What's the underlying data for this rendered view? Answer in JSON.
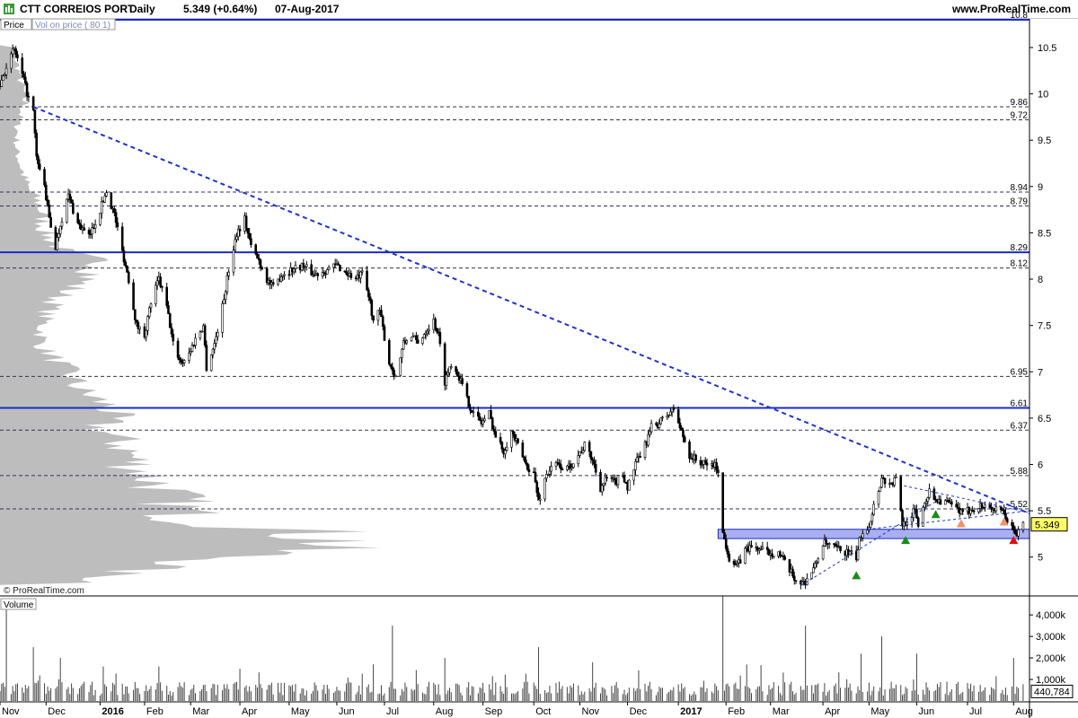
{
  "header": {
    "symbol": "CTT CORREIOS PORT",
    "period": "Daily",
    "last": "5.349 (+0.64%)",
    "date": "07-Aug-2017",
    "site": "www.ProRealTime.com"
  },
  "panels": {
    "price_tab": "Price",
    "vop_tab": "Vol on price ( 80 1)",
    "volume_tab": "Volume",
    "watermark": "© ProRealTime.com"
  },
  "colors": {
    "candle": "#000000",
    "trendline": "#1f33cc",
    "level_major": "#1a2bc2",
    "level_minor": "#333355",
    "zone_fill": "#a9aff0",
    "vop_fill": "#bdbdbd",
    "volume_bar": "#444444",
    "marker_green": "#1a8c1a",
    "marker_orange": "#f0906a",
    "marker_red": "#dd1111"
  },
  "chart_data": {
    "type": "candlestick",
    "x_axis": {
      "start": "2015-11-02",
      "end": "2017-08-11",
      "tick_labels": [
        {
          "date": "2015-11-02",
          "label": "Nov"
        },
        {
          "date": "2015-12-01",
          "label": "Dec"
        },
        {
          "date": "2016-01-04",
          "label": "2016",
          "bold": true
        },
        {
          "date": "2016-02-01",
          "label": "Feb"
        },
        {
          "date": "2016-03-01",
          "label": "Mar"
        },
        {
          "date": "2016-04-01",
          "label": "Apr"
        },
        {
          "date": "2016-05-02",
          "label": "May"
        },
        {
          "date": "2016-06-01",
          "label": "Jun"
        },
        {
          "date": "2016-07-01",
          "label": "Jul"
        },
        {
          "date": "2016-08-01",
          "label": "Aug"
        },
        {
          "date": "2016-09-01",
          "label": "Sep"
        },
        {
          "date": "2016-10-03",
          "label": "Oct"
        },
        {
          "date": "2016-11-01",
          "label": "Nov"
        },
        {
          "date": "2016-12-01",
          "label": "Dec"
        },
        {
          "date": "2017-01-02",
          "label": "2017",
          "bold": true
        },
        {
          "date": "2017-02-01",
          "label": "Feb"
        },
        {
          "date": "2017-03-01",
          "label": "Mar"
        },
        {
          "date": "2017-04-03",
          "label": "Apr"
        },
        {
          "date": "2017-05-02",
          "label": "May"
        },
        {
          "date": "2017-06-01",
          "label": "Jun"
        },
        {
          "date": "2017-07-03",
          "label": "Jul"
        },
        {
          "date": "2017-08-01",
          "label": "Aug"
        }
      ]
    },
    "price_axis": {
      "range": [
        4.6,
        10.8
      ],
      "ticks": [
        {
          "v": 10.5,
          "label": "10.5"
        },
        {
          "v": 10,
          "label": "10"
        },
        {
          "v": 9.5,
          "label": "9.5"
        },
        {
          "v": 9,
          "label": "9"
        },
        {
          "v": 8.5,
          "label": "8.5"
        },
        {
          "v": 8,
          "label": "8"
        },
        {
          "v": 7.5,
          "label": "7.5"
        },
        {
          "v": 7,
          "label": "7"
        },
        {
          "v": 6.5,
          "label": "6.5"
        },
        {
          "v": 6,
          "label": "6"
        },
        {
          "v": 5.5,
          "label": "5.5"
        },
        {
          "v": 5,
          "label": "5"
        }
      ],
      "last_price_tag": "5.349"
    },
    "volume_axis": {
      "range": [
        0,
        4800
      ],
      "ticks": [
        {
          "v": 4000,
          "label": "4,000k"
        },
        {
          "v": 3000,
          "label": "3,000k"
        },
        {
          "v": 2000,
          "label": "2,000k"
        },
        {
          "v": 1000,
          "label": "1,000k"
        }
      ],
      "last_volume_tag": "440,784"
    },
    "horizontal_levels": [
      {
        "value": 10.8,
        "label": "10.8",
        "style": "solid"
      },
      {
        "value": 9.86,
        "label": "9.86",
        "style": "dashed"
      },
      {
        "value": 9.72,
        "label": "9.72",
        "style": "dashed"
      },
      {
        "value": 8.94,
        "label": "8.94",
        "style": "dashed"
      },
      {
        "value": 8.79,
        "label": "8.79",
        "style": "dashed"
      },
      {
        "value": 8.29,
        "label": "8.29",
        "style": "solid"
      },
      {
        "value": 8.12,
        "label": "8.12",
        "style": "dashed"
      },
      {
        "value": 6.95,
        "label": "6.95",
        "style": "dashed"
      },
      {
        "value": 6.61,
        "label": "6.61",
        "style": "solid"
      },
      {
        "value": 6.37,
        "label": "6.37",
        "style": "dashed"
      },
      {
        "value": 5.88,
        "label": "5.88",
        "style": "dashed"
      },
      {
        "value": 5.52,
        "label": "5.52",
        "style": "dashed"
      }
    ],
    "support_zone": {
      "from_date": "2017-01-27",
      "price_low": 5.2,
      "price_high": 5.3
    },
    "trendlines": [
      {
        "from": {
          "date": "2015-11-23",
          "price": 9.86
        },
        "to": {
          "date": "2017-08-11",
          "price": 5.47
        },
        "style": "dashed",
        "weight": "thick"
      },
      {
        "from": {
          "date": "2017-03-20",
          "price": 4.69
        },
        "to": {
          "date": "2017-06-13",
          "price": 5.6
        },
        "style": "dashed",
        "weight": "thin"
      },
      {
        "from": {
          "date": "2017-05-24",
          "price": 5.77
        },
        "to": {
          "date": "2017-08-11",
          "price": 5.48
        },
        "style": "dashed",
        "weight": "thin"
      },
      {
        "from": {
          "date": "2017-05-01",
          "price": 5.3
        },
        "to": {
          "date": "2017-08-11",
          "price": 5.5
        },
        "style": "dashed",
        "weight": "thin"
      }
    ],
    "markers": [
      {
        "date": "2017-04-24",
        "price": 4.8,
        "shape": "up",
        "color": "green"
      },
      {
        "date": "2017-05-25",
        "price": 5.18,
        "shape": "up",
        "color": "green"
      },
      {
        "date": "2017-06-13",
        "price": 5.46,
        "shape": "up",
        "color": "green"
      },
      {
        "date": "2017-06-29",
        "price": 5.36,
        "shape": "up",
        "color": "orange"
      },
      {
        "date": "2017-07-26",
        "price": 5.38,
        "shape": "up",
        "color": "orange"
      },
      {
        "date": "2017-08-01",
        "price": 5.18,
        "shape": "up",
        "color": "red"
      }
    ],
    "price_path": [
      [
        "2015-11-02",
        10.1
      ],
      [
        "2015-11-06",
        10.3
      ],
      [
        "2015-11-11",
        10.48
      ],
      [
        "2015-11-16",
        10.2
      ],
      [
        "2015-11-20",
        9.95
      ],
      [
        "2015-11-23",
        9.8
      ],
      [
        "2015-11-25",
        9.3
      ],
      [
        "2015-11-30",
        9.0
      ],
      [
        "2015-12-03",
        8.65
      ],
      [
        "2015-12-07",
        8.35
      ],
      [
        "2015-12-10",
        8.6
      ],
      [
        "2015-12-15",
        8.9
      ],
      [
        "2015-12-21",
        8.6
      ],
      [
        "2015-12-28",
        8.45
      ],
      [
        "2016-01-04",
        8.75
      ],
      [
        "2016-01-08",
        8.95
      ],
      [
        "2016-01-13",
        8.7
      ],
      [
        "2016-01-18",
        8.3
      ],
      [
        "2016-01-22",
        8.0
      ],
      [
        "2016-01-27",
        7.5
      ],
      [
        "2016-02-01",
        7.4
      ],
      [
        "2016-02-05",
        7.75
      ],
      [
        "2016-02-10",
        8.0
      ],
      [
        "2016-02-15",
        7.7
      ],
      [
        "2016-02-19",
        7.3
      ],
      [
        "2016-02-24",
        7.1
      ],
      [
        "2016-02-29",
        7.2
      ],
      [
        "2016-03-04",
        7.35
      ],
      [
        "2016-03-09",
        7.5
      ],
      [
        "2016-03-11",
        7.05
      ],
      [
        "2016-03-16",
        7.3
      ],
      [
        "2016-03-21",
        7.7
      ],
      [
        "2016-03-25",
        8.1
      ],
      [
        "2016-03-30",
        8.5
      ],
      [
        "2016-04-04",
        8.65
      ],
      [
        "2016-04-08",
        8.35
      ],
      [
        "2016-04-13",
        8.2
      ],
      [
        "2016-04-18",
        8.0
      ],
      [
        "2016-04-22",
        7.9
      ],
      [
        "2016-04-27",
        8.05
      ],
      [
        "2016-05-03",
        8.1
      ],
      [
        "2016-05-10",
        8.15
      ],
      [
        "2016-05-18",
        8.05
      ],
      [
        "2016-05-25",
        8.1
      ],
      [
        "2016-06-01",
        8.15
      ],
      [
        "2016-06-06",
        8.08
      ],
      [
        "2016-06-13",
        8.0
      ],
      [
        "2016-06-17",
        8.05
      ],
      [
        "2016-06-22",
        7.75
      ],
      [
        "2016-06-24",
        7.55
      ],
      [
        "2016-06-28",
        7.65
      ],
      [
        "2016-07-04",
        7.1
      ],
      [
        "2016-07-08",
        6.95
      ],
      [
        "2016-07-13",
        7.3
      ],
      [
        "2016-07-18",
        7.4
      ],
      [
        "2016-07-22",
        7.3
      ],
      [
        "2016-07-27",
        7.45
      ],
      [
        "2016-08-01",
        7.55
      ],
      [
        "2016-08-04",
        7.4
      ],
      [
        "2016-08-08",
        6.9
      ],
      [
        "2016-08-12",
        7.1
      ],
      [
        "2016-08-17",
        6.95
      ],
      [
        "2016-08-22",
        6.7
      ],
      [
        "2016-08-26",
        6.55
      ],
      [
        "2016-08-31",
        6.45
      ],
      [
        "2016-09-05",
        6.55
      ],
      [
        "2016-09-09",
        6.3
      ],
      [
        "2016-09-14",
        6.15
      ],
      [
        "2016-09-19",
        6.35
      ],
      [
        "2016-09-23",
        6.2
      ],
      [
        "2016-09-28",
        6.0
      ],
      [
        "2016-10-03",
        5.9
      ],
      [
        "2016-10-06",
        5.6
      ],
      [
        "2016-10-11",
        5.9
      ],
      [
        "2016-10-17",
        6.0
      ],
      [
        "2016-10-24",
        5.95
      ],
      [
        "2016-10-31",
        6.1
      ],
      [
        "2016-11-04",
        6.2
      ],
      [
        "2016-11-09",
        6.05
      ],
      [
        "2016-11-14",
        5.75
      ],
      [
        "2016-11-18",
        5.85
      ],
      [
        "2016-11-23",
        5.8
      ],
      [
        "2016-11-28",
        5.9
      ],
      [
        "2016-12-01",
        5.75
      ],
      [
        "2016-12-06",
        6.0
      ],
      [
        "2016-12-12",
        6.2
      ],
      [
        "2016-12-16",
        6.4
      ],
      [
        "2016-12-21",
        6.45
      ],
      [
        "2016-12-27",
        6.55
      ],
      [
        "2016-12-30",
        6.6
      ],
      [
        "2017-01-04",
        6.35
      ],
      [
        "2017-01-09",
        6.1
      ],
      [
        "2017-01-13",
        6.05
      ],
      [
        "2017-01-18",
        6.0
      ],
      [
        "2017-01-24",
        6.0
      ],
      [
        "2017-01-27",
        5.95
      ],
      [
        "2017-01-30",
        5.25
      ],
      [
        "2017-02-03",
        5.0
      ],
      [
        "2017-02-08",
        4.9
      ],
      [
        "2017-02-14",
        5.1
      ],
      [
        "2017-02-20",
        5.1
      ],
      [
        "2017-02-27",
        5.05
      ],
      [
        "2017-03-06",
        5.05
      ],
      [
        "2017-03-13",
        4.85
      ],
      [
        "2017-03-17",
        4.75
      ],
      [
        "2017-03-22",
        4.72
      ],
      [
        "2017-03-29",
        4.9
      ],
      [
        "2017-04-03",
        5.15
      ],
      [
        "2017-04-10",
        5.1
      ],
      [
        "2017-04-18",
        5.05
      ],
      [
        "2017-04-24",
        5.0
      ],
      [
        "2017-04-27",
        5.25
      ],
      [
        "2017-05-02",
        5.35
      ],
      [
        "2017-05-05",
        5.55
      ],
      [
        "2017-05-10",
        5.85
      ],
      [
        "2017-05-16",
        5.78
      ],
      [
        "2017-05-19",
        5.85
      ],
      [
        "2017-05-23",
        5.35
      ],
      [
        "2017-05-26",
        5.4
      ],
      [
        "2017-05-31",
        5.5
      ],
      [
        "2017-06-02",
        5.35
      ],
      [
        "2017-06-06",
        5.6
      ],
      [
        "2017-06-09",
        5.7
      ],
      [
        "2017-06-14",
        5.62
      ],
      [
        "2017-06-19",
        5.6
      ],
      [
        "2017-06-23",
        5.55
      ],
      [
        "2017-06-28",
        5.5
      ],
      [
        "2017-06-30",
        5.45
      ],
      [
        "2017-07-05",
        5.52
      ],
      [
        "2017-07-11",
        5.55
      ],
      [
        "2017-07-17",
        5.55
      ],
      [
        "2017-07-21",
        5.5
      ],
      [
        "2017-07-25",
        5.48
      ],
      [
        "2017-07-28",
        5.4
      ],
      [
        "2017-08-01",
        5.28
      ],
      [
        "2017-08-03",
        5.25
      ],
      [
        "2017-08-07",
        5.349
      ]
    ],
    "volume_spikes": [
      {
        "date": "2015-11-06",
        "v": 4500
      },
      {
        "date": "2015-11-23",
        "v": 2500
      },
      {
        "date": "2015-12-10",
        "v": 2000
      },
      {
        "date": "2016-02-10",
        "v": 1600
      },
      {
        "date": "2016-04-01",
        "v": 1500
      },
      {
        "date": "2016-06-24",
        "v": 1700
      },
      {
        "date": "2016-07-06",
        "v": 3500
      },
      {
        "date": "2016-08-08",
        "v": 2000
      },
      {
        "date": "2016-10-06",
        "v": 2500
      },
      {
        "date": "2016-11-09",
        "v": 1800
      },
      {
        "date": "2017-01-30",
        "v": 4900
      },
      {
        "date": "2017-03-23",
        "v": 3500
      },
      {
        "date": "2017-04-27",
        "v": 2200
      },
      {
        "date": "2017-05-10",
        "v": 3000
      },
      {
        "date": "2017-06-01",
        "v": 2200
      },
      {
        "date": "2017-08-01",
        "v": 2000
      }
    ]
  }
}
